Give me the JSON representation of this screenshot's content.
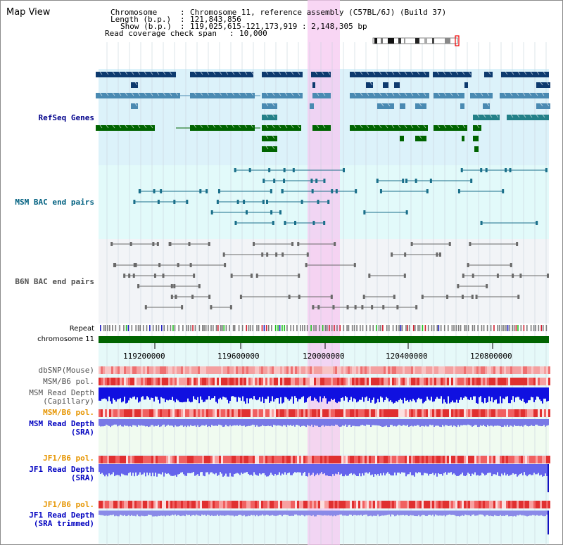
{
  "title": "Map View",
  "header": {
    "chromosome_label": "Chromosome",
    "chromosome_value": "Chromosome 11, reference assembly (C57BL/6J) (Build 37)",
    "length_label": "Length (b.p.)",
    "length_value": "121,843,856",
    "show_label": "Show (b.p.)",
    "show_value": "119,025,615-121,173,919 : 2,148,305 bp",
    "coverage_label": "Read coverage check span",
    "coverage_value": "10,000"
  },
  "tracks": {
    "refseq": "RefSeq Genes",
    "msm_bac": "MSM BAC end pairs",
    "b6n_bac": "B6N BAC end pairs",
    "repeat": "Repeat",
    "chromosome": "chromosome 11",
    "dbsnp": "dbSNP(Mouse)",
    "msm_b6_pol_1": "MSM/B6 pol.",
    "msm_depth_cap_1": "MSM Read Depth",
    "msm_depth_cap_2": "(Capillary)",
    "msm_b6_pol_2": "MSM/B6 pol.",
    "msm_depth_sra_1": "MSM Read Depth",
    "msm_depth_sra_2": "(SRA)",
    "jf1_b6_pol_1": "JF1/B6 pol.",
    "jf1_depth_sra_1": "JF1 Read Depth",
    "jf1_depth_sra_2": "(SRA)",
    "jf1_b6_pol_2": "JF1/B6 pol.",
    "jf1_depth_trim_1": "JF1 Read Depth",
    "jf1_depth_trim_2": "(SRA trimmed)"
  },
  "axis_ticks": [
    "119200000",
    "119600000",
    "120000000",
    "120400000",
    "120800000"
  ],
  "colors": {
    "refseq_label": "#00008b",
    "msm_bac_label": "#006080",
    "b6n_bac_label": "#505050",
    "pol_msm_label": "#e69500",
    "depth_label": "#0000c0",
    "highlight": "#f6c8f0",
    "chrom_bar": "#006400"
  }
}
